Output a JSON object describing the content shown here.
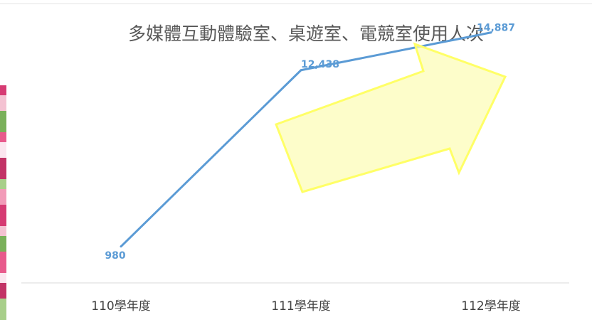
{
  "chart_data": {
    "type": "line",
    "title": "多媒體互動體驗室、桌遊室、電競室使用人次",
    "categories": [
      "110學年度",
      "111學年度",
      "112學年度"
    ],
    "series": [
      {
        "values": [
          980,
          12438,
          14887
        ],
        "data_labels": [
          "980",
          "12,438",
          "14,887"
        ],
        "color": "#5b9bd5"
      }
    ],
    "ylim": [
      0,
      17000
    ],
    "grid": false,
    "legend": "none"
  },
  "decoration": {
    "arrow_fill": "#fcfcb8",
    "arrow_stroke": "#ffff66",
    "photo_strip_colors": [
      "#d63b73",
      "#f4c2d2",
      "#7ab05a",
      "#e85a8c",
      "#fbe6ef",
      "#c23366",
      "#a8cf8a",
      "#f29bb8"
    ]
  }
}
